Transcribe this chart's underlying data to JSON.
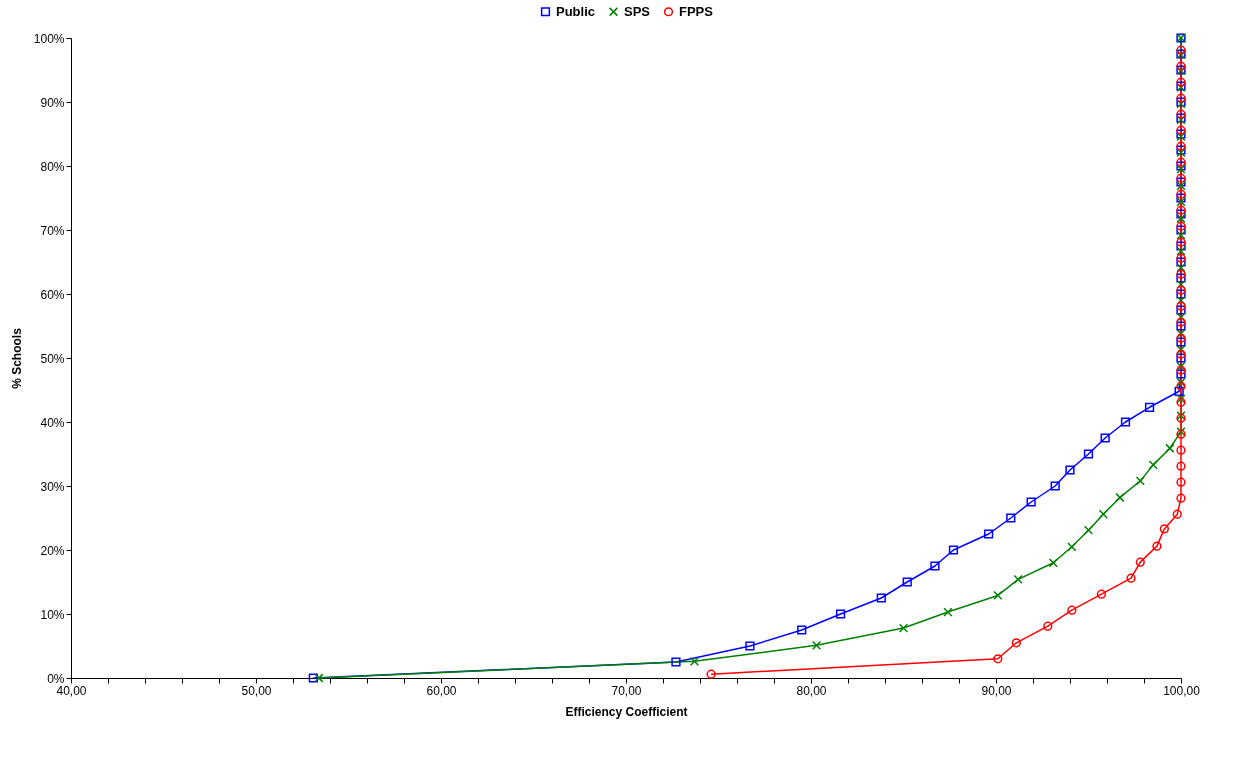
{
  "chart_data": {
    "type": "line",
    "xlabel": "Efficiency Coefficient",
    "ylabel": "% Schools",
    "series": [
      {
        "name": "Public",
        "color": "#0000ff",
        "marker": "square",
        "x": [
          53.1,
          72.7,
          76.7,
          79.5,
          81.6,
          83.8,
          85.2,
          86.7,
          87.7,
          89.6,
          90.8,
          91.9,
          93.2,
          94.0,
          95.0,
          95.9,
          97.0,
          98.3,
          99.9,
          100,
          100,
          100,
          100,
          100,
          100,
          100,
          100,
          100,
          100,
          100,
          100,
          100,
          100,
          100,
          100,
          100,
          100,
          100,
          100,
          100,
          100
        ],
        "values": [
          0,
          2.5,
          5,
          7.5,
          10,
          12.5,
          15,
          17.5,
          20,
          22.5,
          25,
          27.5,
          30,
          32.5,
          35,
          37.5,
          40,
          42.3,
          44.8,
          47.5,
          50,
          52.5,
          55,
          57.5,
          60,
          62.5,
          65,
          67.5,
          70,
          72.5,
          75,
          77.5,
          80,
          82.5,
          85,
          87.5,
          90,
          92.5,
          95,
          97.5,
          100
        ]
      },
      {
        "name": "SPS",
        "color": "#008000",
        "marker": "cross",
        "x": [
          53.4,
          73.7,
          80.3,
          85.0,
          87.4,
          90.1,
          91.2,
          93.1,
          94.1,
          95.0,
          95.8,
          96.7,
          97.8,
          98.5,
          99.4,
          100,
          100,
          100,
          100,
          100,
          100,
          100,
          100,
          100,
          100,
          100,
          100,
          100,
          100,
          100,
          100,
          100,
          100,
          100,
          100,
          100,
          100,
          100,
          100,
          100
        ],
        "values": [
          0,
          2.6,
          5.1,
          7.8,
          10.3,
          12.9,
          15.4,
          18.0,
          20.5,
          23.1,
          25.6,
          28.2,
          30.8,
          33.3,
          35.9,
          38.5,
          41.0,
          43.6,
          46.2,
          48.7,
          51.3,
          53.8,
          56.4,
          59.0,
          61.5,
          64.1,
          66.7,
          69.2,
          71.8,
          74.4,
          76.9,
          79.5,
          82.1,
          84.6,
          87.2,
          89.7,
          92.3,
          94.9,
          97.4,
          100
        ]
      },
      {
        "name": "FPPS",
        "color": "#ff0000",
        "marker": "circle",
        "x": [
          74.6,
          90.1,
          91.1,
          92.8,
          94.1,
          95.7,
          97.3,
          97.8,
          98.7,
          99.1,
          99.8,
          100,
          100,
          100,
          100,
          100,
          100,
          100,
          100,
          100,
          100,
          100,
          100,
          100,
          100,
          100,
          100,
          100,
          100,
          100,
          100,
          100,
          100,
          100,
          100,
          100,
          100,
          100,
          100,
          100
        ],
        "values": [
          0.6,
          3.0,
          5.5,
          8.1,
          10.6,
          13.1,
          15.6,
          18.1,
          20.6,
          23.3,
          25.6,
          28.1,
          30.6,
          33.1,
          35.6,
          38.1,
          40.6,
          43.1,
          45.6,
          48.1,
          50.6,
          53.1,
          55.6,
          58.1,
          60.6,
          63.1,
          65.6,
          68.1,
          70.6,
          73.1,
          75.6,
          78.1,
          80.6,
          83.1,
          85.6,
          88.1,
          90.6,
          93.1,
          95.6,
          98.1
        ]
      }
    ],
    "xlim": [
      40,
      100
    ],
    "xticks": [
      {
        "value": 40,
        "label": "40,00"
      },
      {
        "value": 42,
        "label": null
      },
      {
        "value": 44,
        "label": null
      },
      {
        "value": 46,
        "label": null
      },
      {
        "value": 48,
        "label": null
      },
      {
        "value": 50,
        "label": "50,00"
      },
      {
        "value": 52,
        "label": null
      },
      {
        "value": 54,
        "label": null
      },
      {
        "value": 56,
        "label": null
      },
      {
        "value": 58,
        "label": null
      },
      {
        "value": 60,
        "label": "60,00"
      },
      {
        "value": 62,
        "label": null
      },
      {
        "value": 64,
        "label": null
      },
      {
        "value": 66,
        "label": null
      },
      {
        "value": 68,
        "label": null
      },
      {
        "value": 70,
        "label": "70,00"
      },
      {
        "value": 72,
        "label": null
      },
      {
        "value": 74,
        "label": null
      },
      {
        "value": 76,
        "label": null
      },
      {
        "value": 78,
        "label": null
      },
      {
        "value": 80,
        "label": "80,00"
      },
      {
        "value": 82,
        "label": null
      },
      {
        "value": 84,
        "label": null
      },
      {
        "value": 86,
        "label": null
      },
      {
        "value": 88,
        "label": null
      },
      {
        "value": 90,
        "label": "90,00"
      },
      {
        "value": 92,
        "label": null
      },
      {
        "value": 94,
        "label": null
      },
      {
        "value": 96,
        "label": null
      },
      {
        "value": 98,
        "label": null
      },
      {
        "value": 100,
        "label": "100,00"
      }
    ],
    "ylim": [
      0,
      100
    ],
    "yticks": [
      {
        "value": 0,
        "label": "0%"
      },
      {
        "value": 10,
        "label": "10%"
      },
      {
        "value": 20,
        "label": "20%"
      },
      {
        "value": 30,
        "label": "30%"
      },
      {
        "value": 40,
        "label": "40%"
      },
      {
        "value": 50,
        "label": "50%"
      },
      {
        "value": 60,
        "label": "60%"
      },
      {
        "value": 70,
        "label": "70%"
      },
      {
        "value": 80,
        "label": "80%"
      },
      {
        "value": 90,
        "label": "90%"
      },
      {
        "value": 100,
        "label": "100%"
      }
    ],
    "grid": false,
    "legend": "top",
    "line_style": "solid"
  }
}
